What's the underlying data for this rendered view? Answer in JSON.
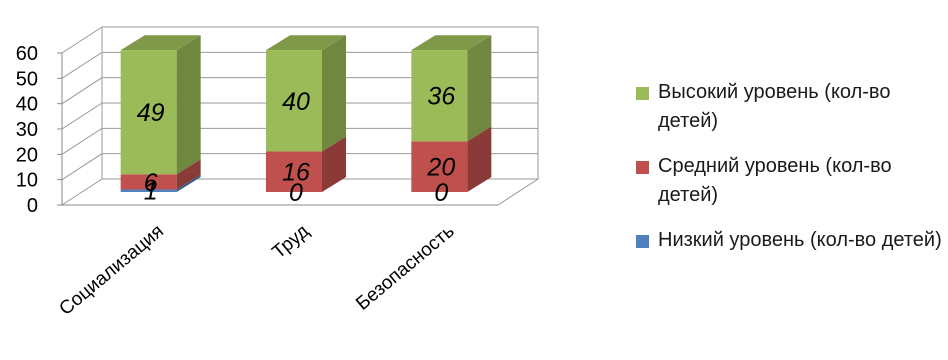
{
  "chart_data": {
    "type": "bar",
    "stacked": true,
    "three_d": true,
    "categories": [
      "Социализация",
      "Труд",
      "Безопасность"
    ],
    "series": [
      {
        "name": "Низкий уровень (кол-во детей)",
        "values": [
          1,
          0,
          0
        ],
        "color": "#4f81bd"
      },
      {
        "name": "Средний уровень (кол-во детей)",
        "values": [
          6,
          16,
          20
        ],
        "color": "#c0504d"
      },
      {
        "name": "Высокий уровень (кол-во детей)",
        "values": [
          49,
          40,
          36
        ],
        "color": "#9bbb59"
      }
    ],
    "ylim": [
      0,
      60
    ],
    "yticks": [
      0,
      10,
      20,
      30,
      40,
      50,
      60
    ],
    "grid": true,
    "legend_position": "right",
    "legend_order": [
      2,
      1,
      0
    ]
  }
}
